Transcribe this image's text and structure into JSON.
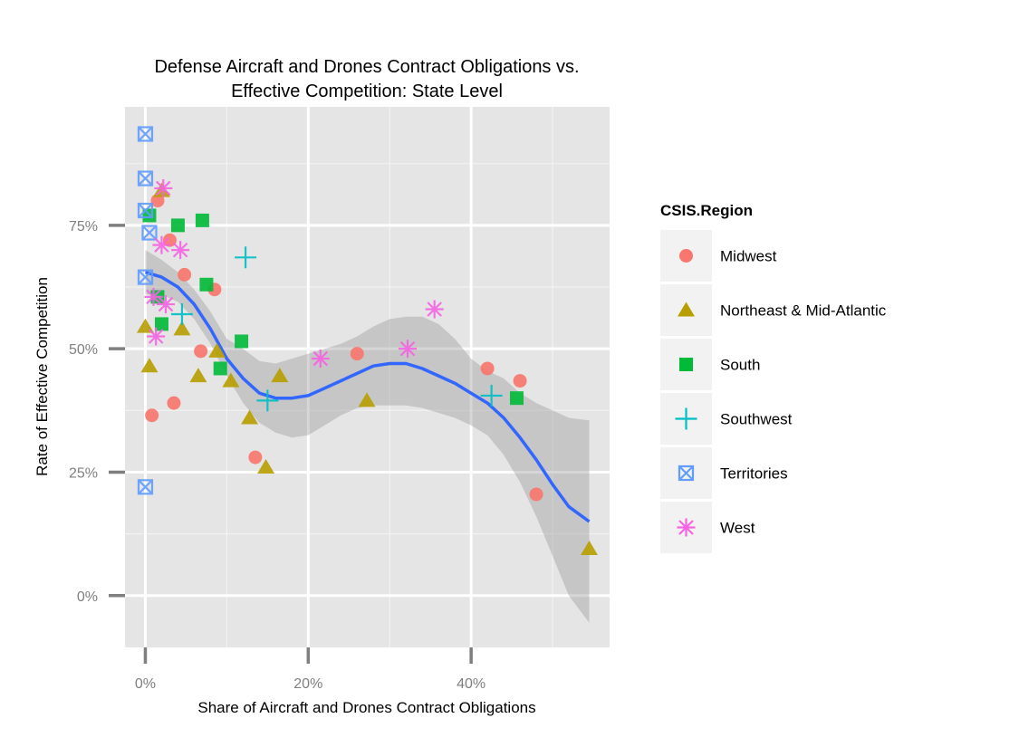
{
  "chart_data": {
    "type": "scatter",
    "title_lines": [
      "Defense Aircraft and Drones Contract Obligations vs.",
      "Effective Competition: State Level"
    ],
    "xlabel": "Share of Aircraft and Drones Contract Obligations",
    "ylabel": "Rate of Effective Competition",
    "x_ticks": [
      {
        "value": 0,
        "label": "0%"
      },
      {
        "value": 0.2,
        "label": "20%"
      },
      {
        "value": 0.4,
        "label": "40%"
      }
    ],
    "y_ticks": [
      {
        "value": 0,
        "label": "0%"
      },
      {
        "value": 0.25,
        "label": "25%"
      },
      {
        "value": 0.5,
        "label": "50%"
      },
      {
        "value": 0.75,
        "label": "75%"
      }
    ],
    "xlim": [
      -0.025,
      0.57
    ],
    "ylim": [
      -0.105,
      0.99
    ],
    "grid": true,
    "legend": {
      "title": "CSIS.Region",
      "position": "right"
    },
    "series": [
      {
        "name": "Midwest",
        "shape": "circle",
        "color": "#F8766D",
        "points": [
          [
            0.015,
            0.8
          ],
          [
            0.03,
            0.72
          ],
          [
            0.048,
            0.65
          ],
          [
            0.085,
            0.62
          ],
          [
            0.068,
            0.495
          ],
          [
            0.035,
            0.39
          ],
          [
            0.008,
            0.365
          ],
          [
            0.135,
            0.28
          ],
          [
            0.26,
            0.49
          ],
          [
            0.42,
            0.46
          ],
          [
            0.46,
            0.435
          ],
          [
            0.48,
            0.205
          ]
        ]
      },
      {
        "name": "Northeast & Mid-Atlantic",
        "shape": "triangle",
        "color": "#B79F00",
        "points": [
          [
            0.02,
            0.82
          ],
          [
            0.0,
            0.545
          ],
          [
            0.045,
            0.54
          ],
          [
            0.005,
            0.465
          ],
          [
            0.065,
            0.445
          ],
          [
            0.088,
            0.495
          ],
          [
            0.105,
            0.435
          ],
          [
            0.128,
            0.36
          ],
          [
            0.165,
            0.445
          ],
          [
            0.148,
            0.26
          ],
          [
            0.272,
            0.395
          ],
          [
            0.545,
            0.095
          ]
        ]
      },
      {
        "name": "South",
        "shape": "square",
        "color": "#00BA38",
        "points": [
          [
            0.005,
            0.77
          ],
          [
            0.04,
            0.75
          ],
          [
            0.07,
            0.76
          ],
          [
            0.075,
            0.63
          ],
          [
            0.015,
            0.605
          ],
          [
            0.02,
            0.55
          ],
          [
            0.118,
            0.515
          ],
          [
            0.092,
            0.46
          ],
          [
            0.456,
            0.4
          ]
        ]
      },
      {
        "name": "Southwest",
        "shape": "plus",
        "color": "#00BFC4",
        "points": [
          [
            0.123,
            0.685
          ],
          [
            0.045,
            0.57
          ],
          [
            0.15,
            0.395
          ],
          [
            0.425,
            0.405
          ]
        ]
      },
      {
        "name": "Territories",
        "shape": "boxcross",
        "color": "#619CFF",
        "points": [
          [
            0.0,
            0.935
          ],
          [
            0.0,
            0.845
          ],
          [
            0.0,
            0.78
          ],
          [
            0.005,
            0.735
          ],
          [
            0.0,
            0.645
          ],
          [
            0.0,
            0.22
          ]
        ]
      },
      {
        "name": "West",
        "shape": "asterisk",
        "color": "#F564E3",
        "points": [
          [
            0.022,
            0.825
          ],
          [
            0.02,
            0.71
          ],
          [
            0.043,
            0.7
          ],
          [
            0.01,
            0.605
          ],
          [
            0.025,
            0.59
          ],
          [
            0.013,
            0.525
          ],
          [
            0.215,
            0.48
          ],
          [
            0.322,
            0.5
          ],
          [
            0.355,
            0.58
          ]
        ]
      }
    ],
    "smooth": {
      "color": "#3366FF",
      "band_color": "#999999",
      "x": [
        0.0,
        0.02,
        0.04,
        0.06,
        0.08,
        0.1,
        0.12,
        0.14,
        0.16,
        0.18,
        0.2,
        0.22,
        0.24,
        0.26,
        0.28,
        0.3,
        0.32,
        0.34,
        0.36,
        0.38,
        0.4,
        0.42,
        0.44,
        0.46,
        0.48,
        0.5,
        0.52,
        0.545
      ],
      "y": [
        0.655,
        0.645,
        0.625,
        0.59,
        0.54,
        0.48,
        0.44,
        0.41,
        0.4,
        0.4,
        0.405,
        0.42,
        0.435,
        0.45,
        0.465,
        0.47,
        0.47,
        0.46,
        0.445,
        0.43,
        0.41,
        0.39,
        0.36,
        0.32,
        0.275,
        0.225,
        0.18,
        0.15
      ],
      "ymin": [
        0.61,
        0.61,
        0.595,
        0.56,
        0.51,
        0.445,
        0.39,
        0.35,
        0.33,
        0.32,
        0.325,
        0.345,
        0.365,
        0.38,
        0.385,
        0.385,
        0.385,
        0.38,
        0.37,
        0.36,
        0.345,
        0.325,
        0.285,
        0.23,
        0.16,
        0.08,
        0.0,
        -0.055
      ],
      "ymax": [
        0.7,
        0.68,
        0.655,
        0.62,
        0.575,
        0.52,
        0.5,
        0.475,
        0.47,
        0.48,
        0.49,
        0.5,
        0.51,
        0.525,
        0.545,
        0.56,
        0.565,
        0.565,
        0.55,
        0.52,
        0.48,
        0.455,
        0.44,
        0.41,
        0.39,
        0.375,
        0.36,
        0.355
      ]
    }
  }
}
